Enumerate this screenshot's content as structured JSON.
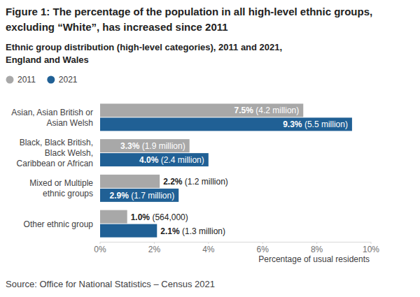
{
  "chart_data": {
    "type": "bar",
    "orientation": "horizontal",
    "title": "Figure 1: The percentage of the population in all high-level ethnic groups, excluding “White”, has increased since 2011",
    "subtitle": "Ethnic group distribution (high-level categories), 2011 and 2021, England and Wales",
    "x_label": "Percentage of usual residents",
    "source": "Source: Office for National Statistics – Census 2021",
    "categories": [
      "Asian, Asian British or Asian Welsh",
      "Black, Black British, Black Welsh, Caribbean or African",
      "Mixed or Multiple ethnic groups",
      "Other ethnic group"
    ],
    "series": [
      {
        "name": "2011",
        "color": "#a8a8a8",
        "values": [
          7.5,
          3.3,
          2.2,
          1.0
        ],
        "value_labels": [
          "7.5%",
          "3.3%",
          "2.2%",
          "1.0%"
        ],
        "population_labels": [
          "(4.2 million)",
          "(1.9 million)",
          "(1.2 million)",
          "(564,000)"
        ]
      },
      {
        "name": "2021",
        "color": "#206095",
        "values": [
          9.3,
          4.0,
          2.9,
          2.1
        ],
        "value_labels": [
          "9.3%",
          "4.0%",
          "2.9%",
          "2.1%"
        ],
        "population_labels": [
          "(5.5 million)",
          "(2.4 million)",
          "(1.7 million)",
          "(1.3 million)"
        ]
      }
    ],
    "xlim": [
      0,
      10
    ],
    "xticks": [
      {
        "value": 0,
        "label": "0%"
      },
      {
        "value": 2,
        "label": "2%"
      },
      {
        "value": 4,
        "label": "4%"
      },
      {
        "value": 6,
        "label": "6%"
      },
      {
        "value": 8,
        "label": "8%"
      },
      {
        "value": 10,
        "label": "10%"
      }
    ],
    "grid": false,
    "legend": "top-left",
    "data_labels": true
  }
}
